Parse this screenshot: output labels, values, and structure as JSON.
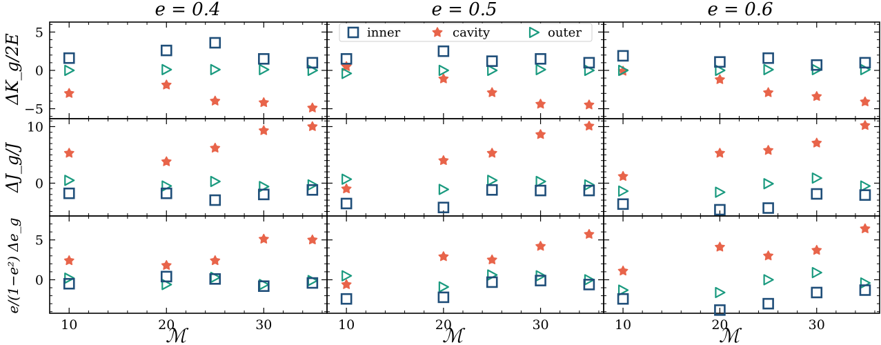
{
  "colors": {
    "inner": "#1f4e79",
    "cavity": "#e8644a",
    "outer": "#1a9a7f"
  },
  "legend": {
    "inner": "inner",
    "cavity": "cavity",
    "outer": "outer"
  },
  "column_titles": [
    "e = 0.4",
    "e = 0.5",
    "e = 0.6"
  ],
  "ylabels": [
    "ΔK_g/2E",
    "ΔJ_g/J",
    "e/(1−e²) Δe_g"
  ],
  "xlabel": "ℳ",
  "chart_data": {
    "type": "scatter",
    "x": [
      10,
      20,
      25,
      30,
      35
    ],
    "xlim": [
      8,
      36.5
    ],
    "xticks": [
      10,
      20,
      30
    ],
    "rows": [
      {
        "name": "dK",
        "ylim": [
          -6.3,
          6.3
        ],
        "yticks": [
          -5,
          0,
          5
        ]
      },
      {
        "name": "dJ",
        "ylim": [
          -5.8,
          11.4
        ],
        "yticks": [
          0,
          10
        ]
      },
      {
        "name": "de",
        "ylim": [
          -4.2,
          8.0
        ],
        "yticks": [
          0,
          5
        ]
      }
    ],
    "panels": [
      {
        "row": 0,
        "col": 0,
        "title": "e = 0.4",
        "inner": [
          1.6,
          2.6,
          3.6,
          1.5,
          1.0
        ],
        "cavity": [
          -3.0,
          -1.9,
          -4.0,
          -4.2,
          -4.9
        ],
        "outer": [
          0.0,
          0.1,
          0.1,
          0.1,
          0.0
        ]
      },
      {
        "row": 0,
        "col": 1,
        "title": "e = 0.5",
        "inner": [
          1.5,
          2.5,
          1.2,
          1.5,
          1.0
        ],
        "cavity": [
          0.5,
          -1.1,
          -2.9,
          -4.4,
          -4.5
        ],
        "outer": [
          -0.4,
          0.0,
          0.0,
          0.1,
          0.0
        ]
      },
      {
        "row": 0,
        "col": 2,
        "title": "e = 0.6",
        "inner": [
          1.9,
          1.1,
          1.6,
          0.7,
          1.0
        ],
        "cavity": [
          -0.1,
          -1.2,
          -2.9,
          -3.4,
          -4.1
        ],
        "outer": [
          0.0,
          0.0,
          0.1,
          0.1,
          0.1
        ]
      },
      {
        "row": 1,
        "col": 0,
        "inner": [
          -1.8,
          -1.8,
          -3.0,
          -2.0,
          -1.2
        ],
        "cavity": [
          5.3,
          3.8,
          6.2,
          9.3,
          10.0
        ],
        "outer": [
          0.5,
          -0.5,
          0.3,
          -0.6,
          -0.3
        ]
      },
      {
        "row": 1,
        "col": 1,
        "inner": [
          -3.6,
          -4.3,
          -1.2,
          -1.3,
          -1.3
        ],
        "cavity": [
          -1.0,
          4.0,
          5.3,
          8.6,
          10.1
        ],
        "outer": [
          0.7,
          -1.1,
          0.5,
          0.3,
          -0.3
        ]
      },
      {
        "row": 1,
        "col": 2,
        "inner": [
          -3.7,
          -4.7,
          -4.4,
          -1.9,
          -2.1
        ],
        "cavity": [
          1.2,
          5.3,
          5.8,
          7.1,
          10.2
        ],
        "outer": [
          -1.4,
          -1.6,
          -0.1,
          0.9,
          -0.5
        ]
      },
      {
        "row": 2,
        "col": 0,
        "inner": [
          -0.5,
          0.4,
          0.1,
          -0.8,
          -0.4
        ],
        "cavity": [
          2.4,
          1.8,
          2.4,
          5.1,
          5.0
        ],
        "outer": [
          0.2,
          -0.6,
          0.3,
          -0.6,
          -0.1
        ]
      },
      {
        "row": 2,
        "col": 1,
        "inner": [
          -2.4,
          -2.2,
          -0.3,
          -0.1,
          -0.6
        ],
        "cavity": [
          -0.6,
          2.9,
          2.5,
          4.2,
          5.7
        ],
        "outer": [
          0.5,
          -0.9,
          0.6,
          0.5,
          0.0
        ]
      },
      {
        "row": 2,
        "col": 2,
        "inner": [
          -2.4,
          -3.8,
          -3.0,
          -1.6,
          -1.3
        ],
        "cavity": [
          1.1,
          4.1,
          3.0,
          3.7,
          6.4
        ],
        "outer": [
          -1.3,
          -1.6,
          0.0,
          0.9,
          -0.4
        ]
      }
    ]
  }
}
